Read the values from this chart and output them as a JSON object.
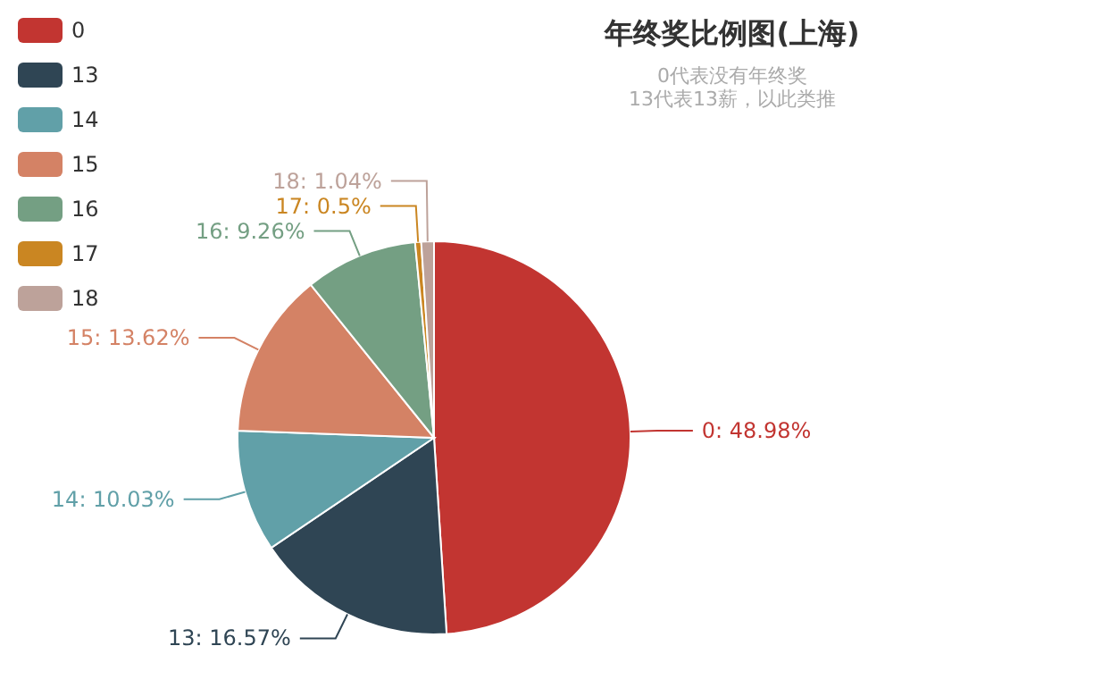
{
  "chart_data": {
    "type": "pie",
    "title": "年终奖比例图(上海)",
    "subtitle": "0代表没有年终奖\n13代表13薪，以此类推",
    "categories": [
      "0",
      "13",
      "14",
      "15",
      "16",
      "17",
      "18"
    ],
    "values": [
      48.98,
      16.57,
      10.03,
      13.62,
      9.26,
      0.5,
      1.04
    ],
    "colors": [
      "#c23531",
      "#2f4554",
      "#61a0a8",
      "#d48265",
      "#749f83",
      "#ca8622",
      "#bda29a"
    ],
    "value_labels": [
      "0: 48.98%",
      "13: 16.57%",
      "14: 10.03%",
      "15: 13.62%",
      "16: 9.26%",
      "17: 0.5%",
      "18: 1.04%"
    ],
    "legend": "top left"
  }
}
